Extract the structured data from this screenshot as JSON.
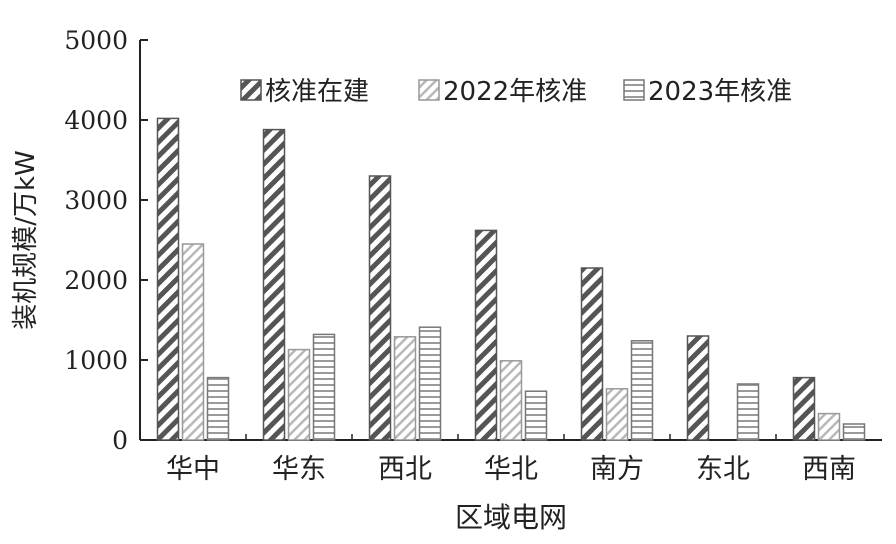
{
  "chart_data": {
    "type": "bar",
    "title": "",
    "xlabel": "区域电网",
    "ylabel": "装机规模/万kW",
    "ylim": [
      0,
      5000
    ],
    "yticks": [
      0,
      1000,
      2000,
      3000,
      4000,
      5000
    ],
    "categories": [
      "华中",
      "华东",
      "西北",
      "华北",
      "南方",
      "东北",
      "西南"
    ],
    "series": [
      {
        "name": "核准在建",
        "pattern": "diagonal",
        "values": [
          4020,
          3880,
          3300,
          2620,
          2150,
          1300,
          780
        ]
      },
      {
        "name": "2022年核准",
        "pattern": "light-diagonal",
        "values": [
          2450,
          1130,
          1290,
          990,
          640,
          0,
          330
        ]
      },
      {
        "name": "2023年核准",
        "pattern": "horizontal",
        "values": [
          780,
          1320,
          1410,
          610,
          1240,
          700,
          200
        ]
      }
    ],
    "legend_position": "top-right",
    "grid": false
  }
}
